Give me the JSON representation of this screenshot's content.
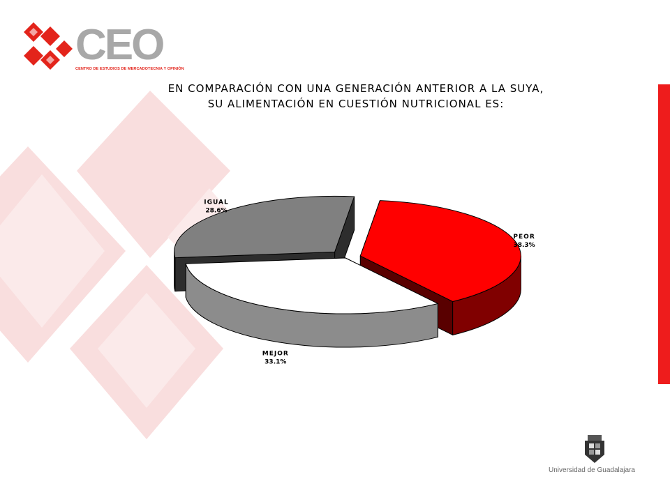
{
  "logo": {
    "word": "CEO",
    "subtitle": "CENTRO DE ESTUDIOS DE MERCADOTECNIA Y OPINIÓN"
  },
  "slide": {
    "accent_color": "#ee1c1c"
  },
  "footer": {
    "university": "Universidad de Guadalajara",
    "crest_icon": "university-crest-icon"
  },
  "chart_data": {
    "type": "pie",
    "title_lines": [
      "EN COMPARACIÓN CON UNA GENERACIÓN ANTERIOR A LA SUYA,",
      "SU ALIMENTACIÓN EN CUESTIÓN NUTRICIONAL ES:"
    ],
    "unit": "%",
    "slices": [
      {
        "label": "PEOR",
        "value": 38.3,
        "value_label": "38.3%",
        "color": "#ff0000",
        "exploded": true
      },
      {
        "label": "MEJOR",
        "value": 33.1,
        "value_label": "33.1%",
        "color": "#ffffff",
        "exploded": false
      },
      {
        "label": "IGUAL",
        "value": 28.6,
        "value_label": "28.6%",
        "color": "#808080",
        "exploded": true
      }
    ],
    "legend": "none",
    "three_d": true
  }
}
